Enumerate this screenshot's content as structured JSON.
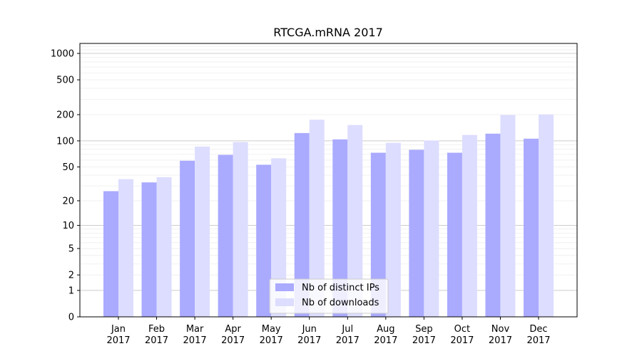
{
  "chart_data": {
    "type": "bar",
    "title": "RTCGA.mRNA 2017",
    "xlabel": "",
    "ylabel": "",
    "y_scale": "symlog",
    "y_ticks": [
      0,
      1,
      2,
      5,
      10,
      20,
      50,
      100,
      200,
      500,
      1000
    ],
    "ylim": [
      0,
      1300
    ],
    "grid": true,
    "legend_position": "bottom-center",
    "categories": [
      "Jan\n2017",
      "Feb\n2017",
      "Mar\n2017",
      "Apr\n2017",
      "May\n2017",
      "Jun\n2017",
      "Jul\n2017",
      "Aug\n2017",
      "Sep\n2017",
      "Oct\n2017",
      "Nov\n2017",
      "Dec\n2017"
    ],
    "series": [
      {
        "name": "Nb of distinct IPs",
        "color": "#aaaaff",
        "values": [
          26,
          33,
          59,
          69,
          53,
          123,
          104,
          73,
          79,
          73,
          121,
          106
        ]
      },
      {
        "name": "Nb of downloads",
        "color": "#ddddff",
        "values": [
          36,
          38,
          86,
          97,
          63,
          175,
          152,
          95,
          101,
          117,
          198,
          201
        ]
      }
    ]
  }
}
